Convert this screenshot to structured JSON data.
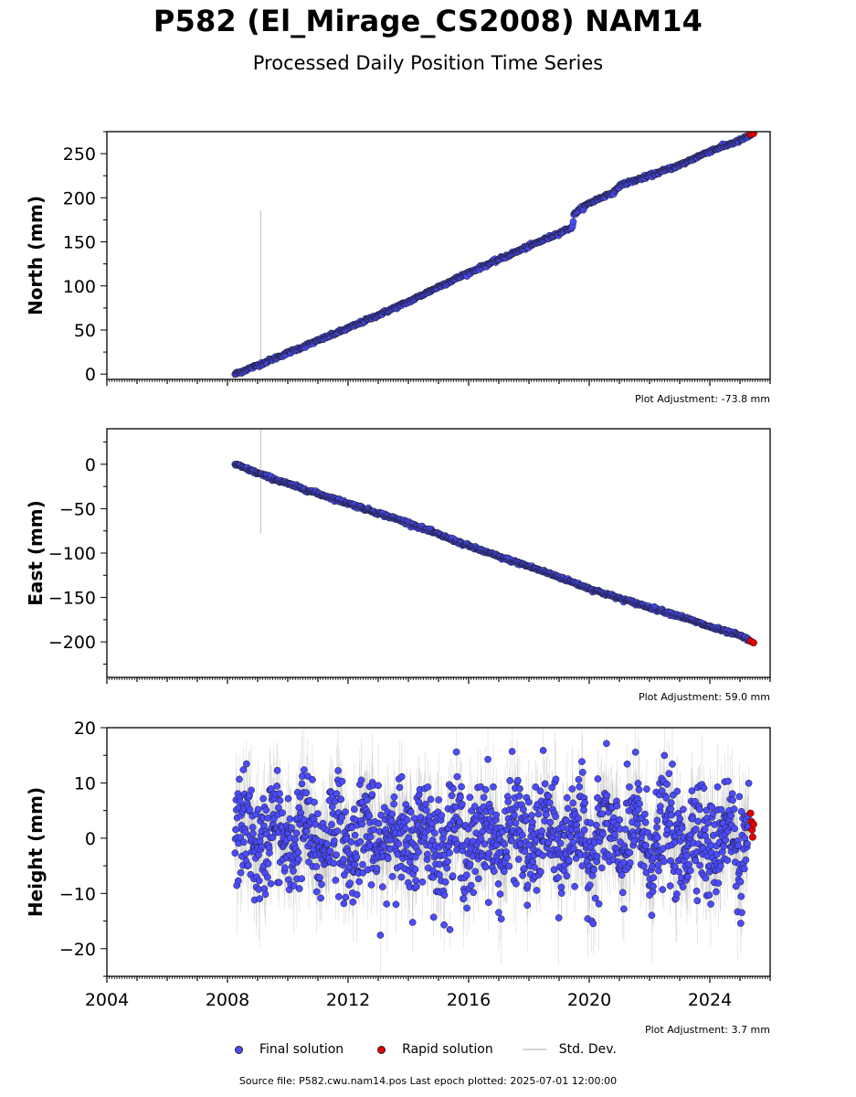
{
  "title": "P582 (El_Mirage_CS2008) NAM14",
  "subtitle": "Processed Daily Position Time Series",
  "legend": {
    "final": "Final solution",
    "rapid": "Rapid solution",
    "std": "Std. Dev."
  },
  "source": "Source file: P582.cwu.nam14.pos  Last epoch plotted: 2025-07-01 12:00:00",
  "colors": {
    "final": "#4b4bff",
    "rapid": "#e00000",
    "std": "#c8c8c8",
    "edge": "#1a1a1a"
  },
  "chart_data": [
    {
      "type": "scatter",
      "ylabel": "North (mm)",
      "adjustment": "Plot Adjustment: -73.8 mm",
      "xlim": [
        2004.0,
        2026.0
      ],
      "ylim": [
        -6,
        275
      ],
      "yticks": [
        0,
        50,
        100,
        150,
        200,
        250
      ],
      "x_tick_labels_shown": false,
      "series": [
        {
          "name": "Final solution",
          "x": [
            2008.25,
            2009.0,
            2010.0,
            2011.0,
            2012.0,
            2013.0,
            2014.0,
            2015.0,
            2016.0,
            2017.0,
            2018.0,
            2019.0,
            2019.45,
            2019.5,
            2020.0,
            2020.9,
            2021.0,
            2022.0,
            2023.0,
            2024.0,
            2025.0,
            2025.4
          ],
          "y": [
            0,
            10,
            24,
            38,
            52,
            67,
            82,
            99,
            115,
            130,
            145,
            160,
            167,
            182,
            194,
            208,
            214,
            225,
            237,
            253,
            265,
            272
          ]
        },
        {
          "name": "Rapid solution",
          "x": [
            2025.35,
            2025.45
          ],
          "y": [
            272,
            273
          ]
        }
      ],
      "std_outlier": {
        "x": 2009.1,
        "y_range": [
          10,
          186
        ]
      }
    },
    {
      "type": "scatter",
      "ylabel": "East (mm)",
      "adjustment": "Plot Adjustment: 59.0 mm",
      "xlim": [
        2004.0,
        2026.0
      ],
      "ylim": [
        -240,
        40
      ],
      "yticks": [
        0,
        -50,
        -100,
        -150,
        -200
      ],
      "x_tick_labels_shown": false,
      "series": [
        {
          "name": "Final solution",
          "x": [
            2008.25,
            2009.0,
            2010.0,
            2011.0,
            2012.0,
            2013.0,
            2014.0,
            2015.0,
            2016.0,
            2017.0,
            2018.0,
            2019.0,
            2020.0,
            2021.0,
            2022.0,
            2023.0,
            2024.0,
            2025.0,
            2025.4
          ],
          "y": [
            0,
            -10,
            -22,
            -33,
            -44,
            -55,
            -66,
            -79,
            -92,
            -104,
            -115,
            -127,
            -140,
            -151,
            -161,
            -171,
            -183,
            -193,
            -200
          ]
        },
        {
          "name": "Rapid solution",
          "x": [
            2025.35,
            2025.45
          ],
          "y": [
            -199,
            -201
          ]
        }
      ],
      "std_outlier": {
        "x": 2009.1,
        "y_range": [
          -78,
          40
        ]
      }
    },
    {
      "type": "scatter",
      "ylabel": "Height (mm)",
      "adjustment": "Plot Adjustment: 3.7 mm",
      "xlim": [
        2004.0,
        2026.0
      ],
      "ylim": [
        -25,
        20
      ],
      "yticks": [
        20,
        10,
        0,
        -10,
        -20
      ],
      "xticks": [
        2004,
        2008,
        2012,
        2016,
        2020,
        2024
      ],
      "x_tick_labels_shown": true,
      "series": [
        {
          "name": "Final solution",
          "x_start": 2008.25,
          "x_end": 2025.3,
          "center": 0,
          "spread": 8
        },
        {
          "name": "Rapid solution",
          "x": [
            2025.35,
            2025.38,
            2025.4,
            2025.42,
            2025.45
          ],
          "y": [
            4.5,
            3.0,
            1.5,
            0.2,
            2.5
          ]
        }
      ]
    }
  ]
}
